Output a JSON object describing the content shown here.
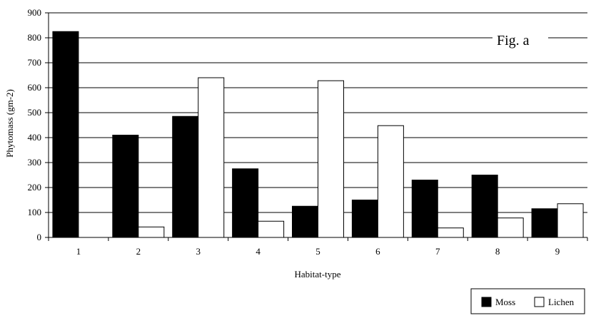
{
  "chart_data": {
    "type": "bar",
    "categories": [
      "1",
      "2",
      "3",
      "4",
      "5",
      "6",
      "7",
      "8",
      "9"
    ],
    "series": [
      {
        "name": "Moss",
        "color": "#000000",
        "values": [
          825,
          410,
          485,
          275,
          125,
          150,
          230,
          250,
          115
        ]
      },
      {
        "name": "Lichen",
        "color": "#ffffff",
        "values": [
          0,
          42,
          640,
          65,
          628,
          448,
          38,
          78,
          135
        ]
      }
    ],
    "xlabel": "Habitat-type",
    "ylabel": "Phytomass (gm-2)",
    "ylim": [
      0,
      900
    ],
    "yticks": [
      0,
      100,
      200,
      300,
      400,
      500,
      600,
      700,
      800,
      900
    ],
    "annotation": "Fig. a",
    "grid": true,
    "legend_position": "bottom-right"
  }
}
